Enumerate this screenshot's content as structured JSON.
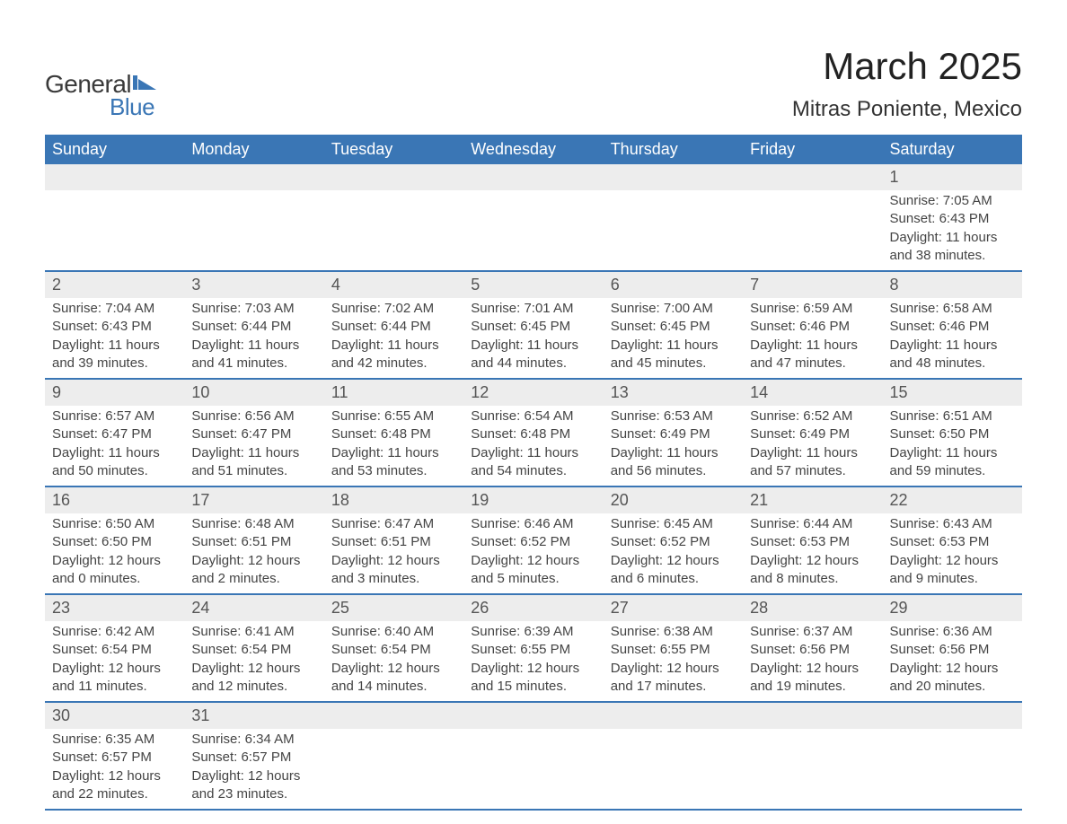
{
  "logo": {
    "text1": "General",
    "text2": "Blue",
    "icon_color": "#3a76b5"
  },
  "title": "March 2025",
  "location": "Mitras Poniente, Mexico",
  "colors": {
    "header_bg": "#3a76b5",
    "header_text": "#ffffff",
    "daynum_bg": "#ededed",
    "text": "#444444",
    "border": "#3a76b5"
  },
  "fonts": {
    "title_size_pt": 32,
    "location_size_pt": 18,
    "weekday_size_pt": 14,
    "daynum_size_pt": 14,
    "detail_size_pt": 11
  },
  "weekdays": [
    "Sunday",
    "Monday",
    "Tuesday",
    "Wednesday",
    "Thursday",
    "Friday",
    "Saturday"
  ],
  "weeks": [
    [
      null,
      null,
      null,
      null,
      null,
      null,
      {
        "d": "1",
        "sr": "Sunrise: 7:05 AM",
        "ss": "Sunset: 6:43 PM",
        "dl1": "Daylight: 11 hours",
        "dl2": "and 38 minutes."
      }
    ],
    [
      {
        "d": "2",
        "sr": "Sunrise: 7:04 AM",
        "ss": "Sunset: 6:43 PM",
        "dl1": "Daylight: 11 hours",
        "dl2": "and 39 minutes."
      },
      {
        "d": "3",
        "sr": "Sunrise: 7:03 AM",
        "ss": "Sunset: 6:44 PM",
        "dl1": "Daylight: 11 hours",
        "dl2": "and 41 minutes."
      },
      {
        "d": "4",
        "sr": "Sunrise: 7:02 AM",
        "ss": "Sunset: 6:44 PM",
        "dl1": "Daylight: 11 hours",
        "dl2": "and 42 minutes."
      },
      {
        "d": "5",
        "sr": "Sunrise: 7:01 AM",
        "ss": "Sunset: 6:45 PM",
        "dl1": "Daylight: 11 hours",
        "dl2": "and 44 minutes."
      },
      {
        "d": "6",
        "sr": "Sunrise: 7:00 AM",
        "ss": "Sunset: 6:45 PM",
        "dl1": "Daylight: 11 hours",
        "dl2": "and 45 minutes."
      },
      {
        "d": "7",
        "sr": "Sunrise: 6:59 AM",
        "ss": "Sunset: 6:46 PM",
        "dl1": "Daylight: 11 hours",
        "dl2": "and 47 minutes."
      },
      {
        "d": "8",
        "sr": "Sunrise: 6:58 AM",
        "ss": "Sunset: 6:46 PM",
        "dl1": "Daylight: 11 hours",
        "dl2": "and 48 minutes."
      }
    ],
    [
      {
        "d": "9",
        "sr": "Sunrise: 6:57 AM",
        "ss": "Sunset: 6:47 PM",
        "dl1": "Daylight: 11 hours",
        "dl2": "and 50 minutes."
      },
      {
        "d": "10",
        "sr": "Sunrise: 6:56 AM",
        "ss": "Sunset: 6:47 PM",
        "dl1": "Daylight: 11 hours",
        "dl2": "and 51 minutes."
      },
      {
        "d": "11",
        "sr": "Sunrise: 6:55 AM",
        "ss": "Sunset: 6:48 PM",
        "dl1": "Daylight: 11 hours",
        "dl2": "and 53 minutes."
      },
      {
        "d": "12",
        "sr": "Sunrise: 6:54 AM",
        "ss": "Sunset: 6:48 PM",
        "dl1": "Daylight: 11 hours",
        "dl2": "and 54 minutes."
      },
      {
        "d": "13",
        "sr": "Sunrise: 6:53 AM",
        "ss": "Sunset: 6:49 PM",
        "dl1": "Daylight: 11 hours",
        "dl2": "and 56 minutes."
      },
      {
        "d": "14",
        "sr": "Sunrise: 6:52 AM",
        "ss": "Sunset: 6:49 PM",
        "dl1": "Daylight: 11 hours",
        "dl2": "and 57 minutes."
      },
      {
        "d": "15",
        "sr": "Sunrise: 6:51 AM",
        "ss": "Sunset: 6:50 PM",
        "dl1": "Daylight: 11 hours",
        "dl2": "and 59 minutes."
      }
    ],
    [
      {
        "d": "16",
        "sr": "Sunrise: 6:50 AM",
        "ss": "Sunset: 6:50 PM",
        "dl1": "Daylight: 12 hours",
        "dl2": "and 0 minutes."
      },
      {
        "d": "17",
        "sr": "Sunrise: 6:48 AM",
        "ss": "Sunset: 6:51 PM",
        "dl1": "Daylight: 12 hours",
        "dl2": "and 2 minutes."
      },
      {
        "d": "18",
        "sr": "Sunrise: 6:47 AM",
        "ss": "Sunset: 6:51 PM",
        "dl1": "Daylight: 12 hours",
        "dl2": "and 3 minutes."
      },
      {
        "d": "19",
        "sr": "Sunrise: 6:46 AM",
        "ss": "Sunset: 6:52 PM",
        "dl1": "Daylight: 12 hours",
        "dl2": "and 5 minutes."
      },
      {
        "d": "20",
        "sr": "Sunrise: 6:45 AM",
        "ss": "Sunset: 6:52 PM",
        "dl1": "Daylight: 12 hours",
        "dl2": "and 6 minutes."
      },
      {
        "d": "21",
        "sr": "Sunrise: 6:44 AM",
        "ss": "Sunset: 6:53 PM",
        "dl1": "Daylight: 12 hours",
        "dl2": "and 8 minutes."
      },
      {
        "d": "22",
        "sr": "Sunrise: 6:43 AM",
        "ss": "Sunset: 6:53 PM",
        "dl1": "Daylight: 12 hours",
        "dl2": "and 9 minutes."
      }
    ],
    [
      {
        "d": "23",
        "sr": "Sunrise: 6:42 AM",
        "ss": "Sunset: 6:54 PM",
        "dl1": "Daylight: 12 hours",
        "dl2": "and 11 minutes."
      },
      {
        "d": "24",
        "sr": "Sunrise: 6:41 AM",
        "ss": "Sunset: 6:54 PM",
        "dl1": "Daylight: 12 hours",
        "dl2": "and 12 minutes."
      },
      {
        "d": "25",
        "sr": "Sunrise: 6:40 AM",
        "ss": "Sunset: 6:54 PM",
        "dl1": "Daylight: 12 hours",
        "dl2": "and 14 minutes."
      },
      {
        "d": "26",
        "sr": "Sunrise: 6:39 AM",
        "ss": "Sunset: 6:55 PM",
        "dl1": "Daylight: 12 hours",
        "dl2": "and 15 minutes."
      },
      {
        "d": "27",
        "sr": "Sunrise: 6:38 AM",
        "ss": "Sunset: 6:55 PM",
        "dl1": "Daylight: 12 hours",
        "dl2": "and 17 minutes."
      },
      {
        "d": "28",
        "sr": "Sunrise: 6:37 AM",
        "ss": "Sunset: 6:56 PM",
        "dl1": "Daylight: 12 hours",
        "dl2": "and 19 minutes."
      },
      {
        "d": "29",
        "sr": "Sunrise: 6:36 AM",
        "ss": "Sunset: 6:56 PM",
        "dl1": "Daylight: 12 hours",
        "dl2": "and 20 minutes."
      }
    ],
    [
      {
        "d": "30",
        "sr": "Sunrise: 6:35 AM",
        "ss": "Sunset: 6:57 PM",
        "dl1": "Daylight: 12 hours",
        "dl2": "and 22 minutes."
      },
      {
        "d": "31",
        "sr": "Sunrise: 6:34 AM",
        "ss": "Sunset: 6:57 PM",
        "dl1": "Daylight: 12 hours",
        "dl2": "and 23 minutes."
      },
      null,
      null,
      null,
      null,
      null
    ]
  ]
}
